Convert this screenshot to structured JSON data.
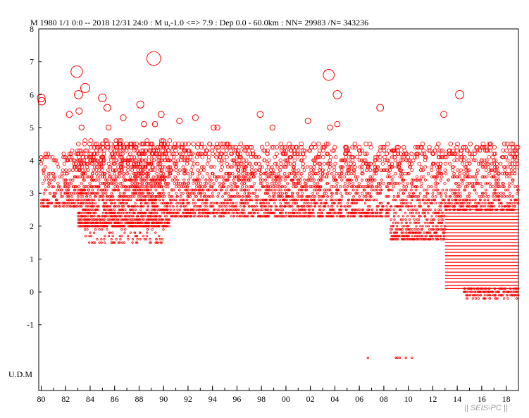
{
  "chart_data": {
    "type": "scatter",
    "title": "M    1980 1/1 0:0 -- 2018 12/31 24:0  : M u,-1.0 <=> 7.9   :  Dep 0.0 - 60.0km :  NN= 29983 /N= 343236",
    "xlabel": "",
    "ylabel": "",
    "xlim": [
      1979.8,
      2019.0
    ],
    "ylim": [
      -3.0,
      8.0
    ],
    "x_ticks": [
      "80",
      "82",
      "84",
      "86",
      "88",
      "90",
      "92",
      "94",
      "96",
      "98",
      "00",
      "02",
      "04",
      "06",
      "08",
      "10",
      "12",
      "14",
      "16",
      "18"
    ],
    "x_tick_values": [
      1980,
      1982,
      1984,
      1986,
      1988,
      1990,
      1992,
      1994,
      1996,
      1998,
      2000,
      2002,
      2004,
      2006,
      2008,
      2010,
      2012,
      2014,
      2016,
      2018
    ],
    "y_ticks": [
      "8",
      "7",
      "6",
      "5",
      "4",
      "3",
      "2",
      "1",
      "0",
      "-1"
    ],
    "y_tick_values": [
      8,
      7,
      6,
      5,
      4,
      3,
      2,
      1,
      0,
      -1
    ],
    "udm_label": "U.D.M",
    "udm_y": -2.0,
    "grid": false,
    "marker_color": "#ff0000",
    "watermark": "|| SEIS-PC ||",
    "large_events": [
      {
        "x": 1980.0,
        "m": 5.9
      },
      {
        "x": 1980.05,
        "m": 5.8
      },
      {
        "x": 1982.3,
        "m": 5.4
      },
      {
        "x": 1982.9,
        "m": 6.7
      },
      {
        "x": 1983.05,
        "m": 6.0
      },
      {
        "x": 1983.3,
        "m": 5.0
      },
      {
        "x": 1983.6,
        "m": 6.2
      },
      {
        "x": 1983.1,
        "m": 5.5
      },
      {
        "x": 1985.0,
        "m": 5.9
      },
      {
        "x": 1985.4,
        "m": 5.6
      },
      {
        "x": 1985.5,
        "m": 5.0
      },
      {
        "x": 1986.7,
        "m": 5.3
      },
      {
        "x": 1988.1,
        "m": 5.7
      },
      {
        "x": 1988.4,
        "m": 5.1
      },
      {
        "x": 1989.2,
        "m": 7.1
      },
      {
        "x": 1989.3,
        "m": 5.1
      },
      {
        "x": 1989.8,
        "m": 5.4
      },
      {
        "x": 1991.3,
        "m": 5.2
      },
      {
        "x": 1992.6,
        "m": 5.3
      },
      {
        "x": 1994.1,
        "m": 5.0
      },
      {
        "x": 1994.4,
        "m": 5.0
      },
      {
        "x": 1997.9,
        "m": 5.4
      },
      {
        "x": 1998.9,
        "m": 5.0
      },
      {
        "x": 2001.8,
        "m": 5.2
      },
      {
        "x": 2003.5,
        "m": 6.6
      },
      {
        "x": 2003.6,
        "m": 5.0
      },
      {
        "x": 2004.2,
        "m": 6.0
      },
      {
        "x": 2004.2,
        "m": 5.1
      },
      {
        "x": 2007.7,
        "m": 5.6
      },
      {
        "x": 2012.9,
        "m": 5.4
      },
      {
        "x": 2014.2,
        "m": 6.0
      }
    ],
    "udm_events_x": [
      2006.7,
      2009.0,
      2009.1,
      2009.3,
      2009.8,
      2010.3
    ],
    "density_regions": [
      {
        "x0": 1980.0,
        "x1": 1983.0,
        "m0": 2.6,
        "m1": 4.3,
        "n": 220
      },
      {
        "x0": 1983.0,
        "x1": 1990.5,
        "m0": 2.0,
        "m1": 4.6,
        "n": 1500
      },
      {
        "x0": 1983.5,
        "x1": 1990.0,
        "m0": 1.5,
        "m1": 2.3,
        "n": 120
      },
      {
        "x0": 1990.5,
        "x1": 2008.5,
        "m0": 2.3,
        "m1": 4.5,
        "n": 1900
      },
      {
        "x0": 2008.5,
        "x1": 2013.0,
        "m0": 1.6,
        "m1": 4.5,
        "n": 600
      },
      {
        "x0": 2013.0,
        "x1": 2019.0,
        "m0": 2.5,
        "m1": 4.5,
        "n": 500
      }
    ],
    "dense_band": {
      "x0": 2013.0,
      "x1": 2019.0,
      "m0": 0.1,
      "m1": 2.5,
      "step": 0.1
    },
    "dense_band_low": {
      "x0": 2014.5,
      "x1": 2019.0,
      "m0": -0.2,
      "m1": 0.1
    }
  }
}
